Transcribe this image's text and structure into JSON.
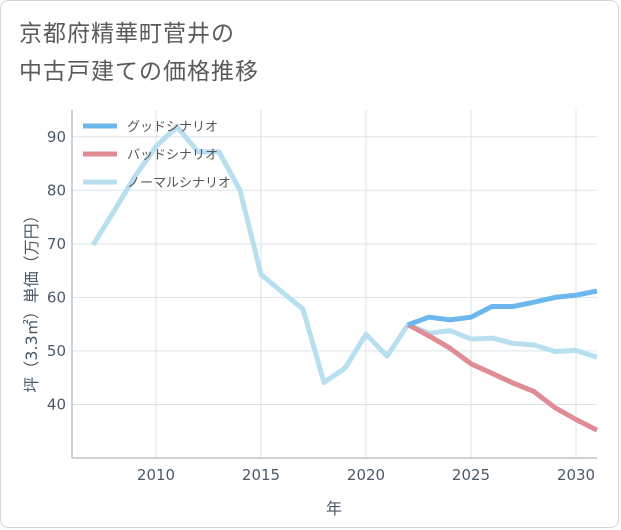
{
  "title": {
    "line1": "京都府精華町菅井の",
    "line2": "中古戸建ての価格推移"
  },
  "chart_data": {
    "type": "line",
    "xlabel": "年",
    "ylabel": "坪（3.3㎡）単価（万円）",
    "xlim": [
      2006,
      2031
    ],
    "ylim": [
      30,
      95
    ],
    "x_ticks": [
      2010,
      2015,
      2020,
      2025,
      2030
    ],
    "y_ticks": [
      40,
      50,
      60,
      70,
      80,
      90
    ],
    "grid": true,
    "legend_position": "top-left",
    "series": [
      {
        "name": "グッドシナリオ",
        "color": "#6cb8ee",
        "x": [
          2022,
          2023,
          2024,
          2025,
          2026,
          2027,
          2028,
          2029,
          2030,
          2031
        ],
        "y": [
          54.9,
          56.3,
          55.8,
          56.3,
          58.3,
          58.3,
          59.1,
          60.0,
          60.4,
          61.2
        ]
      },
      {
        "name": "バッドシナリオ",
        "color": "#e08c94",
        "x": [
          2022,
          2023,
          2024,
          2025,
          2026,
          2027,
          2028,
          2029,
          2030,
          2031
        ],
        "y": [
          54.9,
          52.8,
          50.5,
          47.6,
          45.8,
          44.0,
          42.4,
          39.4,
          37.2,
          35.2
        ]
      },
      {
        "name": "ノーマルシナリオ",
        "color": "#b7dff0",
        "x": [
          2007,
          2008,
          2009,
          2010,
          2011,
          2012,
          2013,
          2014,
          2015,
          2016,
          2017,
          2018,
          2019,
          2020,
          2021,
          2022,
          2023,
          2024,
          2025,
          2026,
          2027,
          2028,
          2029,
          2030,
          2031
        ],
        "y": [
          69.8,
          76.1,
          82.6,
          88.2,
          91.9,
          87.2,
          87.2,
          80.0,
          64.3,
          61.0,
          57.8,
          44.1,
          46.8,
          53.1,
          49.0,
          54.9,
          53.3,
          53.8,
          52.2,
          52.4,
          51.4,
          51.1,
          49.9,
          50.1,
          48.8
        ]
      }
    ]
  }
}
